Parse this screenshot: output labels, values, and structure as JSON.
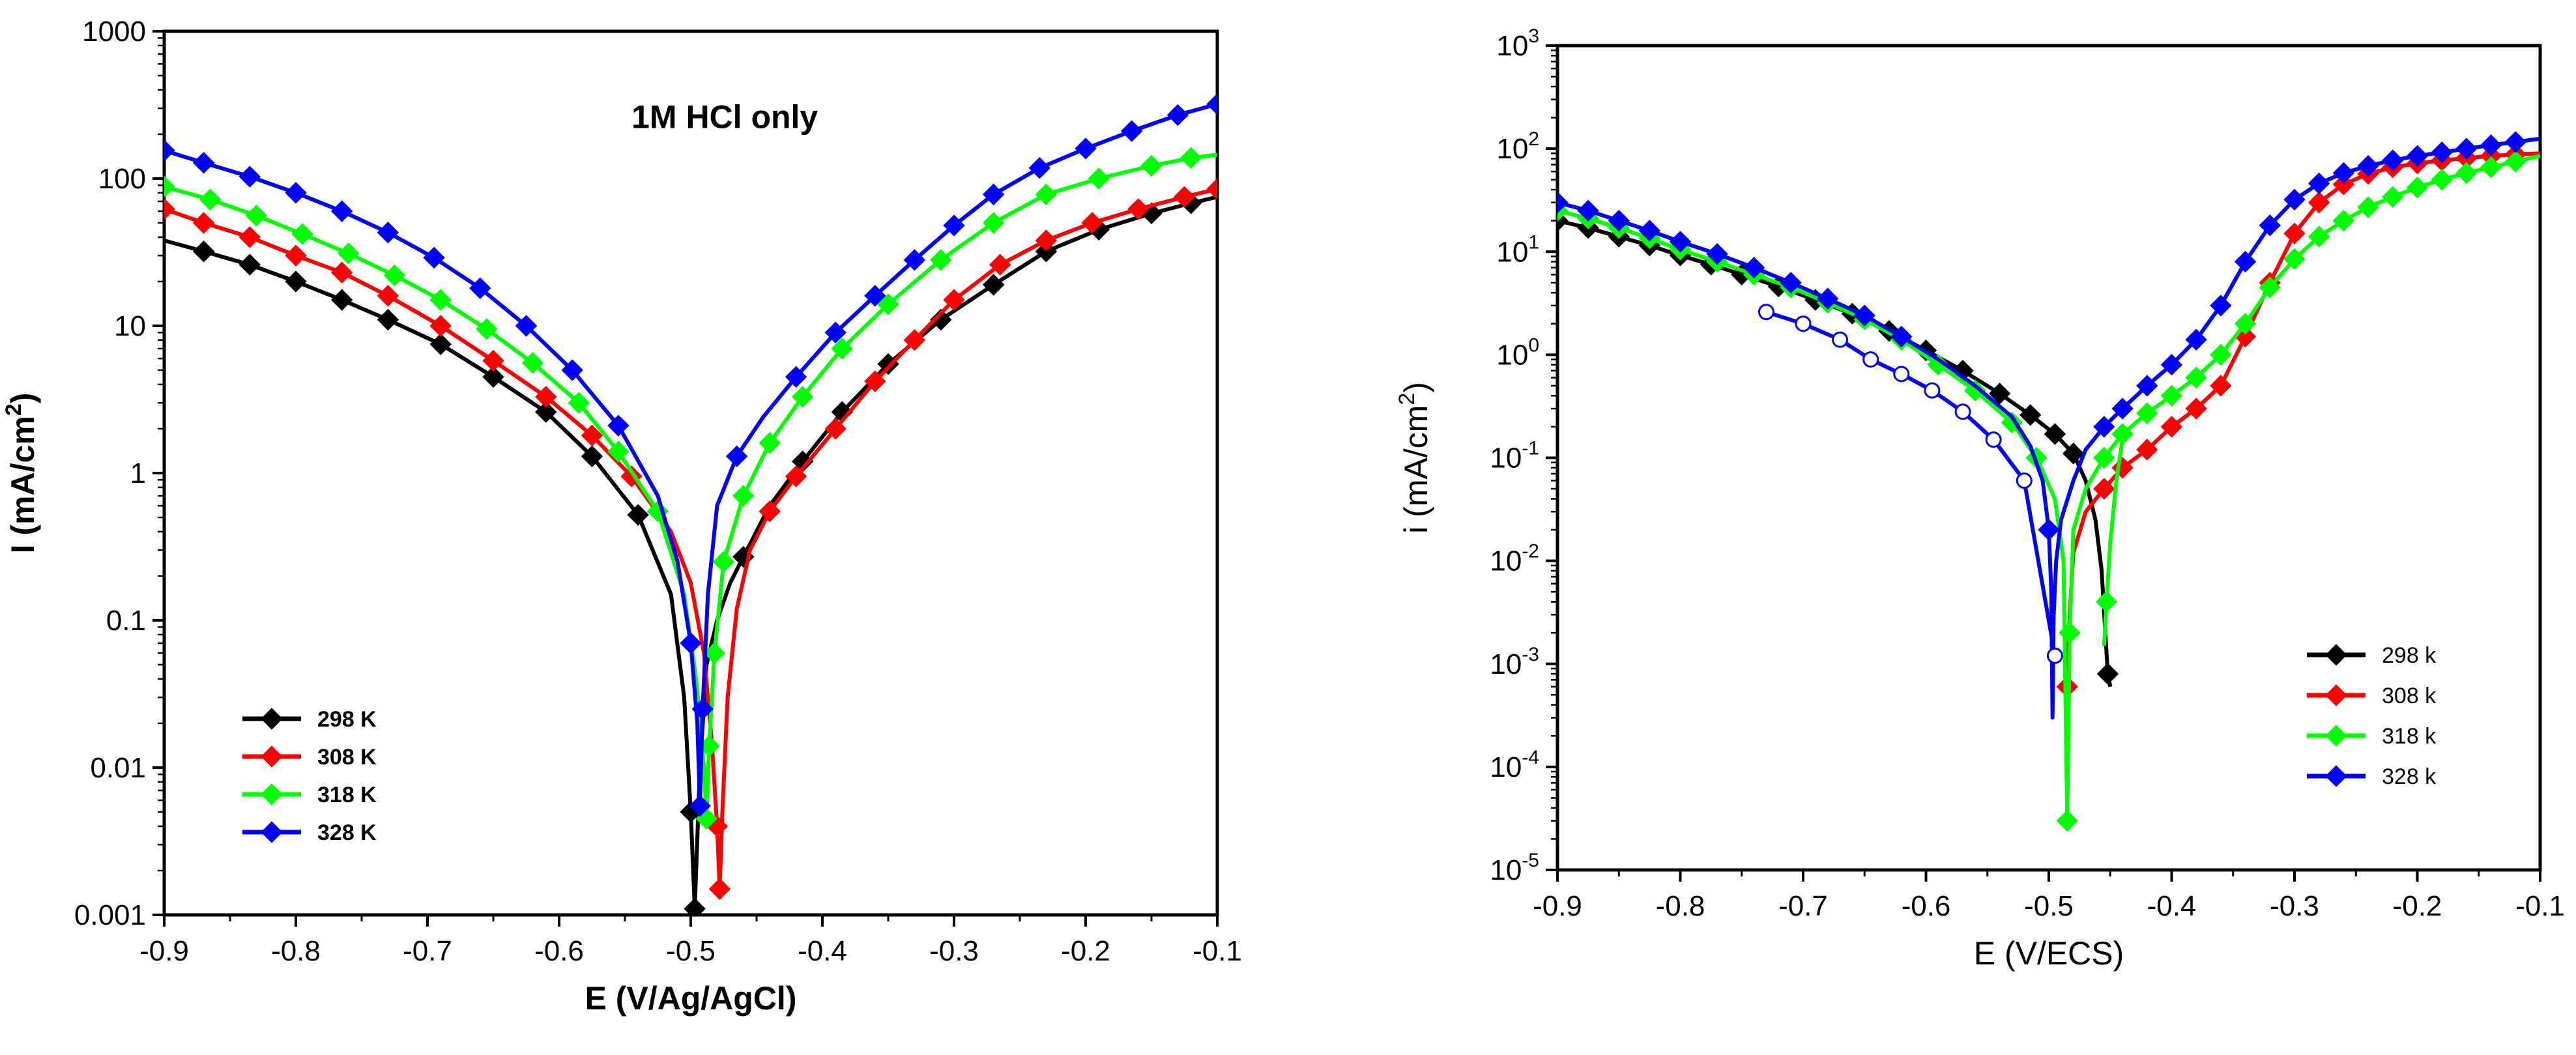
{
  "chart_data": [
    {
      "type": "line",
      "panel": "left",
      "annotation": "1M HCl only",
      "xlabel": "E (V/Ag/AgCl)",
      "ylabel_main": "I (mA/cm",
      "ylabel_sup": "2",
      "ylabel_end": ")",
      "xlim": [
        -0.9,
        -0.1
      ],
      "ylim": [
        0.001,
        1000
      ],
      "yscale": "log",
      "x_ticks": [
        -0.9,
        -0.8,
        -0.7,
        -0.6,
        -0.5,
        -0.4,
        -0.3,
        -0.2,
        -0.1
      ],
      "x_tick_labels": [
        "-0.9",
        "-0.8",
        "-0.7",
        "-0.6",
        "-0.5",
        "-0.4",
        "-0.3",
        "-0.2",
        "-0.1"
      ],
      "y_ticks": [
        0.001,
        0.01,
        0.1,
        1,
        10,
        100,
        1000
      ],
      "y_tick_labels": [
        "0.001",
        "0.01",
        "0.1",
        "1",
        "10",
        "100",
        "1000"
      ],
      "legend_position": "bottom-left",
      "legend_labels": [
        "298 K",
        "308 K",
        "318 K",
        "328 K"
      ],
      "series": [
        {
          "name": "298 K",
          "color": "#000000",
          "ecorr": -0.497,
          "min_i": 0.0011,
          "x": [
            -0.9,
            -0.87,
            -0.835,
            -0.8,
            -0.765,
            -0.73,
            -0.69,
            -0.65,
            -0.61,
            -0.575,
            -0.54,
            -0.515,
            -0.505,
            -0.5,
            -0.497,
            -0.493,
            -0.488,
            -0.48,
            -0.47,
            -0.46,
            -0.44,
            -0.415,
            -0.385,
            -0.35,
            -0.31,
            -0.27,
            -0.23,
            -0.19,
            -0.15,
            -0.12,
            -0.1
          ],
          "y": [
            38,
            32,
            26,
            20,
            15,
            11,
            7.5,
            4.5,
            2.6,
            1.3,
            0.52,
            0.15,
            0.03,
            0.005,
            0.0011,
            0.01,
            0.05,
            0.1,
            0.18,
            0.27,
            0.6,
            1.2,
            2.6,
            5.5,
            11,
            19,
            32,
            45,
            58,
            68,
            75
          ],
          "marker_x": [
            -0.87,
            -0.835,
            -0.8,
            -0.765,
            -0.73,
            -0.69,
            -0.65,
            -0.61,
            -0.575,
            -0.54,
            -0.5,
            -0.497,
            -0.46,
            -0.415,
            -0.385,
            -0.35,
            -0.31,
            -0.27,
            -0.23,
            -0.19,
            -0.15,
            -0.12
          ]
        },
        {
          "name": "308 K",
          "color": "#ff0000",
          "ecorr": -0.478,
          "min_i": 0.0015,
          "x": [
            -0.9,
            -0.87,
            -0.835,
            -0.8,
            -0.765,
            -0.73,
            -0.69,
            -0.65,
            -0.61,
            -0.575,
            -0.545,
            -0.515,
            -0.5,
            -0.49,
            -0.484,
            -0.48,
            -0.478,
            -0.476,
            -0.472,
            -0.465,
            -0.455,
            -0.44,
            -0.42,
            -0.39,
            -0.36,
            -0.33,
            -0.3,
            -0.265,
            -0.23,
            -0.195,
            -0.16,
            -0.125,
            -0.1
          ],
          "y": [
            62,
            50,
            40,
            30,
            23,
            16,
            10,
            5.8,
            3.3,
            1.8,
            0.95,
            0.4,
            0.18,
            0.06,
            0.015,
            0.004,
            0.0015,
            0.005,
            0.03,
            0.12,
            0.3,
            0.55,
            0.95,
            2.0,
            4.2,
            8.0,
            15,
            26,
            38,
            50,
            62,
            75,
            85
          ],
          "marker_x": [
            -0.9,
            -0.87,
            -0.835,
            -0.8,
            -0.765,
            -0.73,
            -0.69,
            -0.65,
            -0.61,
            -0.575,
            -0.545,
            -0.48,
            -0.478,
            -0.44,
            -0.42,
            -0.39,
            -0.36,
            -0.33,
            -0.3,
            -0.265,
            -0.23,
            -0.195,
            -0.16,
            -0.125,
            -0.1
          ]
        },
        {
          "name": "318 K",
          "color": "#00ff00",
          "ecorr": -0.488,
          "min_i": 0.0045,
          "x": [
            -0.9,
            -0.865,
            -0.83,
            -0.795,
            -0.76,
            -0.725,
            -0.69,
            -0.655,
            -0.62,
            -0.585,
            -0.555,
            -0.525,
            -0.505,
            -0.496,
            -0.49,
            -0.488,
            -0.486,
            -0.482,
            -0.475,
            -0.46,
            -0.44,
            -0.415,
            -0.385,
            -0.35,
            -0.31,
            -0.27,
            -0.23,
            -0.19,
            -0.15,
            -0.12,
            -0.1
          ],
          "y": [
            88,
            72,
            56,
            42,
            31,
            22,
            15,
            9.5,
            5.6,
            3.0,
            1.4,
            0.55,
            0.15,
            0.04,
            0.01,
            0.0045,
            0.014,
            0.06,
            0.25,
            0.7,
            1.6,
            3.3,
            7,
            14,
            28,
            50,
            78,
            100,
            122,
            138,
            145
          ],
          "marker_x": [
            -0.9,
            -0.865,
            -0.83,
            -0.795,
            -0.76,
            -0.725,
            -0.69,
            -0.655,
            -0.62,
            -0.585,
            -0.555,
            -0.525,
            -0.488,
            -0.486,
            -0.482,
            -0.475,
            -0.46,
            -0.44,
            -0.415,
            -0.385,
            -0.35,
            -0.31,
            -0.27,
            -0.23,
            -0.19,
            -0.15,
            -0.12
          ]
        },
        {
          "name": "328 K",
          "color": "#0000ff",
          "ecorr": -0.493,
          "min_i": 0.0055,
          "x": [
            -0.9,
            -0.87,
            -0.835,
            -0.8,
            -0.765,
            -0.73,
            -0.695,
            -0.66,
            -0.625,
            -0.59,
            -0.555,
            -0.525,
            -0.51,
            -0.5,
            -0.495,
            -0.493,
            -0.491,
            -0.487,
            -0.48,
            -0.465,
            -0.445,
            -0.42,
            -0.39,
            -0.36,
            -0.33,
            -0.3,
            -0.27,
            -0.235,
            -0.2,
            -0.165,
            -0.13,
            -0.1
          ],
          "y": [
            155,
            128,
            103,
            80,
            60,
            43,
            29,
            18,
            10,
            5.0,
            2.1,
            0.7,
            0.25,
            0.07,
            0.02,
            0.0055,
            0.025,
            0.15,
            0.6,
            1.3,
            2.4,
            4.5,
            9,
            16,
            28,
            48,
            78,
            118,
            160,
            210,
            270,
            320
          ],
          "marker_x": [
            -0.9,
            -0.87,
            -0.835,
            -0.8,
            -0.765,
            -0.73,
            -0.695,
            -0.66,
            -0.625,
            -0.59,
            -0.555,
            -0.5,
            -0.493,
            -0.491,
            -0.465,
            -0.42,
            -0.39,
            -0.36,
            -0.33,
            -0.3,
            -0.27,
            -0.235,
            -0.2,
            -0.165,
            -0.13,
            -0.1
          ]
        }
      ]
    },
    {
      "type": "line",
      "panel": "right",
      "xlabel": "E (V/ECS)",
      "ylabel_main": "i (mA/cm",
      "ylabel_sup": "2",
      "ylabel_end": ")",
      "xlim": [
        -0.9,
        -0.1
      ],
      "ylim": [
        1e-05,
        1000
      ],
      "yscale": "log",
      "x_ticks": [
        -0.9,
        -0.8,
        -0.7,
        -0.6,
        -0.5,
        -0.4,
        -0.3,
        -0.2,
        -0.1
      ],
      "x_tick_labels": [
        "-0.9",
        "-0.8",
        "-0.7",
        "-0.6",
        "-0.5",
        "-0.4",
        "-0.3",
        "-0.2",
        "-0.1"
      ],
      "y_ticks": [
        1e-05,
        0.0001,
        0.001,
        0.01,
        0.1,
        1,
        10,
        100,
        1000
      ],
      "y_tick_labels": [
        {
          "base": "10",
          "exp": "-5"
        },
        {
          "base": "10",
          "exp": "-4"
        },
        {
          "base": "10",
          "exp": "-3"
        },
        {
          "base": "10",
          "exp": "-2"
        },
        {
          "base": "",
          "exp": "",
          "plain": "10⁻¹"
        },
        {
          "base": "10",
          "exp": "0"
        },
        {
          "base": "10",
          "exp": "1"
        },
        {
          "base": "10",
          "exp": "2"
        },
        {
          "base": "10",
          "exp": "3"
        }
      ],
      "y_tick_plain": [
        "10-5",
        "10-4",
        "10-3",
        "10-2",
        "10-1",
        "100",
        "101",
        "102",
        "103"
      ],
      "legend_position": "bottom-right",
      "legend_labels": [
        "298 k",
        "308 k",
        "318 k",
        "328 k"
      ],
      "series": [
        {
          "name": "298 k",
          "color": "#000000",
          "x": [
            -0.9,
            -0.875,
            -0.85,
            -0.825,
            -0.8,
            -0.775,
            -0.75,
            -0.72,
            -0.69,
            -0.66,
            -0.63,
            -0.6,
            -0.57,
            -0.54,
            -0.515,
            -0.495,
            -0.48,
            -0.47,
            -0.462,
            -0.457,
            -0.454,
            -0.452,
            -0.45
          ],
          "y": [
            20,
            17,
            14,
            11.5,
            9.2,
            7.5,
            6.0,
            4.6,
            3.4,
            2.5,
            1.7,
            1.1,
            0.7,
            0.42,
            0.26,
            0.17,
            0.11,
            0.06,
            0.025,
            0.008,
            0.002,
            0.0008,
            0.0006
          ],
          "marker_x": [
            -0.9,
            -0.875,
            -0.85,
            -0.825,
            -0.8,
            -0.775,
            -0.75,
            -0.72,
            -0.69,
            -0.66,
            -0.63,
            -0.6,
            -0.57,
            -0.54,
            -0.515,
            -0.495,
            -0.48,
            -0.452
          ]
        },
        {
          "name": "308 k",
          "color": "#ff0000",
          "x": [
            -0.485,
            -0.483,
            -0.48,
            -0.47,
            -0.455,
            -0.44,
            -0.42,
            -0.4,
            -0.38,
            -0.36,
            -0.34,
            -0.32,
            -0.3,
            -0.28,
            -0.26,
            -0.24,
            -0.22,
            -0.2,
            -0.18,
            -0.16,
            -0.14,
            -0.12,
            -0.1
          ],
          "y": [
            0.0006,
            0.003,
            0.012,
            0.03,
            0.05,
            0.08,
            0.12,
            0.2,
            0.3,
            0.5,
            1.5,
            5,
            15,
            30,
            45,
            57,
            66,
            72,
            77,
            81,
            85,
            88,
            90
          ],
          "marker_x": [
            -0.485,
            -0.455,
            -0.44,
            -0.42,
            -0.4,
            -0.38,
            -0.36,
            -0.34,
            -0.32,
            -0.3,
            -0.28,
            -0.26,
            -0.24,
            -0.22,
            -0.2,
            -0.18,
            -0.16,
            -0.14,
            -0.12
          ]
        },
        {
          "name": "318 k",
          "color": "#00ff00",
          "x": [
            -0.9,
            -0.875,
            -0.85,
            -0.825,
            -0.8,
            -0.77,
            -0.74,
            -0.71,
            -0.68,
            -0.65,
            -0.62,
            -0.59,
            -0.56,
            -0.53,
            -0.51,
            -0.495,
            -0.488,
            -0.485,
            -0.483,
            -0.48,
            -0.47,
            -0.455,
            -0.44,
            -0.42,
            -0.4,
            -0.38,
            -0.36,
            -0.34,
            -0.32,
            -0.3,
            -0.28,
            -0.26,
            -0.24,
            -0.22,
            -0.2,
            -0.18,
            -0.16,
            -0.14,
            -0.12,
            -0.1
          ],
          "y": [
            25,
            21,
            17,
            13.5,
            10.5,
            8.0,
            6.0,
            4.5,
            3.2,
            2.2,
            1.4,
            0.8,
            0.45,
            0.22,
            0.1,
            0.04,
            0.01,
            3e-05,
            0.002,
            0.02,
            0.05,
            0.1,
            0.17,
            0.27,
            0.4,
            0.6,
            1.0,
            2.0,
            4.5,
            8.5,
            14,
            20,
            27,
            34,
            42,
            50,
            58,
            66,
            75,
            85
          ],
          "marker_x": [
            -0.9,
            -0.875,
            -0.85,
            -0.825,
            -0.8,
            -0.77,
            -0.74,
            -0.71,
            -0.68,
            -0.65,
            -0.62,
            -0.59,
            -0.56,
            -0.53,
            -0.51,
            -0.485,
            -0.483,
            -0.455,
            -0.44,
            -0.42,
            -0.4,
            -0.38,
            -0.36,
            -0.34,
            -0.32,
            -0.3,
            -0.28,
            -0.26,
            -0.24,
            -0.22,
            -0.2,
            -0.18,
            -0.16,
            -0.14,
            -0.12
          ]
        },
        {
          "name": "318 k (branch)",
          "legend_hidden": true,
          "color": "#00ff00",
          "x": [
            -0.455,
            -0.453,
            -0.45,
            -0.445,
            -0.44
          ],
          "y": [
            0.0015,
            0.004,
            0.015,
            0.06,
            0.15
          ],
          "marker_x": [
            -0.453
          ]
        },
        {
          "name": "328 k",
          "color": "#0000ff",
          "x": [
            -0.9,
            -0.875,
            -0.85,
            -0.825,
            -0.8,
            -0.77,
            -0.74,
            -0.71,
            -0.68,
            -0.65,
            -0.62,
            -0.59,
            -0.56,
            -0.53,
            -0.515,
            -0.505,
            -0.5,
            -0.498,
            -0.497,
            -0.496,
            -0.494,
            -0.49,
            -0.48,
            -0.47,
            -0.455,
            -0.44,
            -0.42,
            -0.4,
            -0.38,
            -0.36,
            -0.34,
            -0.32,
            -0.3,
            -0.28,
            -0.26,
            -0.24,
            -0.22,
            -0.2,
            -0.18,
            -0.16,
            -0.14,
            -0.12,
            -0.1
          ],
          "y": [
            30,
            25,
            20,
            16,
            12.5,
            9.5,
            7.0,
            5.0,
            3.5,
            2.4,
            1.5,
            0.9,
            0.5,
            0.25,
            0.13,
            0.06,
            0.02,
            0.005,
            0.0003,
            0.003,
            0.01,
            0.025,
            0.06,
            0.12,
            0.2,
            0.3,
            0.5,
            0.8,
            1.4,
            3,
            8,
            18,
            32,
            46,
            58,
            68,
            77,
            85,
            92,
            100,
            108,
            116,
            125
          ],
          "marker_x": [
            -0.9,
            -0.875,
            -0.85,
            -0.825,
            -0.8,
            -0.77,
            -0.74,
            -0.71,
            -0.68,
            -0.65,
            -0.62,
            -0.5,
            -0.455,
            -0.44,
            -0.42,
            -0.4,
            -0.38,
            -0.36,
            -0.34,
            -0.32,
            -0.3,
            -0.28,
            -0.26,
            -0.24,
            -0.22,
            -0.2,
            -0.18,
            -0.16,
            -0.14,
            -0.12
          ]
        },
        {
          "name": "open markers",
          "legend_hidden": true,
          "color": "#0000ff",
          "open": true,
          "x": [
            -0.73,
            -0.7,
            -0.67,
            -0.645,
            -0.62,
            -0.595,
            -0.57,
            -0.545,
            -0.52,
            -0.495
          ],
          "y": [
            2.6,
            2.0,
            1.4,
            0.9,
            0.65,
            0.45,
            0.28,
            0.15,
            0.06,
            0.0012
          ],
          "marker_x": [
            -0.73,
            -0.7,
            -0.67,
            -0.645,
            -0.62,
            -0.595,
            -0.57,
            -0.545,
            -0.52,
            -0.495
          ]
        }
      ]
    }
  ]
}
